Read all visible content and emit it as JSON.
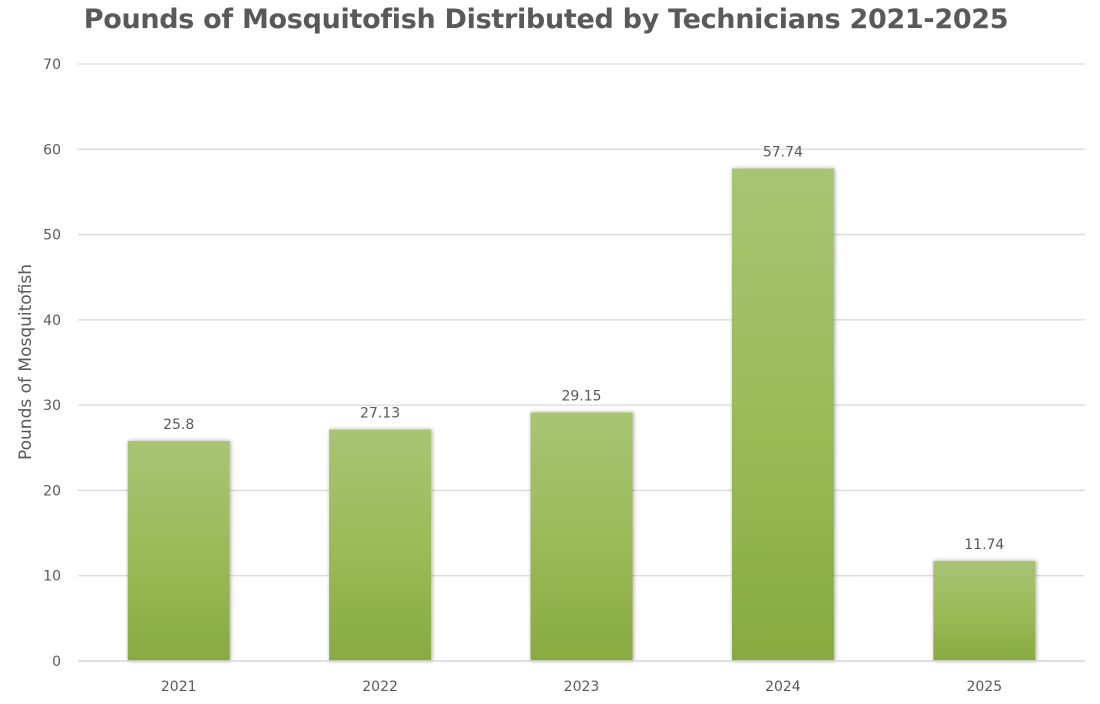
{
  "chart_data": {
    "type": "bar",
    "title": "Pounds of Mosquitofish Distributed by Technicians 2021-2025",
    "xlabel": "",
    "ylabel": "Pounds of Mosquitofish",
    "categories": [
      "2021",
      "2022",
      "2023",
      "2024",
      "2025"
    ],
    "values": [
      25.8,
      27.13,
      29.15,
      57.74,
      11.74
    ],
    "data_labels": [
      "25.8",
      "27.13",
      "29.15",
      "57.74",
      "11.74"
    ],
    "ylim": [
      0,
      70
    ],
    "yticks": [
      0,
      10,
      20,
      30,
      40,
      50,
      60,
      70
    ],
    "grid": true,
    "legend": "none",
    "colors": {
      "bar_top": "#a8c474",
      "bar_mid": "#9bbb59",
      "bar_bottom": "#88aa40",
      "grid": "#d9d9d9",
      "text": "#595959"
    }
  }
}
